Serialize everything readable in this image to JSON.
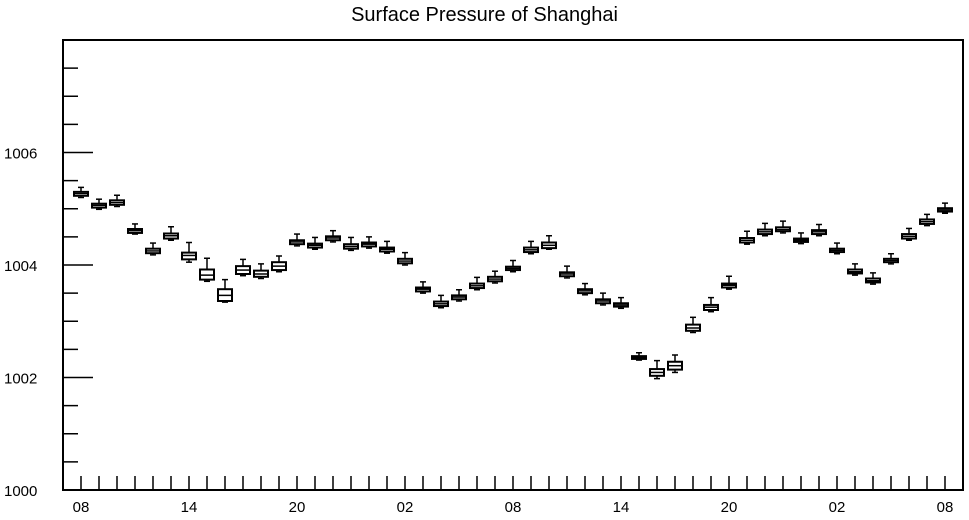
{
  "chart_data": {
    "type": "box",
    "title": "Surface Pressure of Shanghai",
    "xlabel": "",
    "ylabel": "",
    "ylim": [
      1000,
      1008
    ],
    "y_ticks": [
      "1000",
      "1002",
      "1004",
      "1006"
    ],
    "x_ticks": [
      {
        "index": 0,
        "label": "08"
      },
      {
        "index": 6,
        "label": "14"
      },
      {
        "index": 12,
        "label": "20"
      },
      {
        "index": 18,
        "label": "02"
      },
      {
        "index": 24,
        "label": "08"
      },
      {
        "index": 30,
        "label": "14"
      },
      {
        "index": 36,
        "label": "20"
      },
      {
        "index": 42,
        "label": "02"
      },
      {
        "index": 48,
        "label": "08"
      }
    ],
    "grid": false,
    "series": [
      {
        "values": [
          {
            "x": 0,
            "median": 1005.27,
            "q1": 1005.23,
            "q3": 1005.3,
            "min": 1005.2,
            "max": 1005.38
          },
          {
            "x": 1,
            "median": 1005.06,
            "q1": 1005.02,
            "q3": 1005.09,
            "min": 1004.99,
            "max": 1005.17
          },
          {
            "x": 2,
            "median": 1005.11,
            "q1": 1005.07,
            "q3": 1005.15,
            "min": 1005.04,
            "max": 1005.24
          },
          {
            "x": 3,
            "median": 1004.61,
            "q1": 1004.57,
            "q3": 1004.64,
            "min": 1004.55,
            "max": 1004.73
          },
          {
            "x": 4,
            "median": 1004.25,
            "q1": 1004.21,
            "q3": 1004.29,
            "min": 1004.18,
            "max": 1004.39
          },
          {
            "x": 5,
            "median": 1004.52,
            "q1": 1004.47,
            "q3": 1004.56,
            "min": 1004.44,
            "max": 1004.68
          },
          {
            "x": 6,
            "median": 1004.17,
            "q1": 1004.1,
            "q3": 1004.22,
            "min": 1004.05,
            "max": 1004.4
          },
          {
            "x": 7,
            "median": 1003.82,
            "q1": 1003.74,
            "q3": 1003.92,
            "min": 1003.71,
            "max": 1004.12
          },
          {
            "x": 8,
            "median": 1003.46,
            "q1": 1003.36,
            "q3": 1003.57,
            "min": 1003.34,
            "max": 1003.74
          },
          {
            "x": 9,
            "median": 1003.91,
            "q1": 1003.84,
            "q3": 1003.98,
            "min": 1003.81,
            "max": 1004.1
          },
          {
            "x": 10,
            "median": 1003.84,
            "q1": 1003.79,
            "q3": 1003.9,
            "min": 1003.76,
            "max": 1004.02
          },
          {
            "x": 11,
            "median": 1003.98,
            "q1": 1003.91,
            "q3": 1004.05,
            "min": 1003.88,
            "max": 1004.16
          },
          {
            "x": 12,
            "median": 1004.41,
            "q1": 1004.37,
            "q3": 1004.44,
            "min": 1004.34,
            "max": 1004.55
          },
          {
            "x": 13,
            "median": 1004.35,
            "q1": 1004.31,
            "q3": 1004.38,
            "min": 1004.28,
            "max": 1004.49
          },
          {
            "x": 14,
            "median": 1004.48,
            "q1": 1004.44,
            "q3": 1004.51,
            "min": 1004.41,
            "max": 1004.61
          },
          {
            "x": 15,
            "median": 1004.33,
            "q1": 1004.29,
            "q3": 1004.37,
            "min": 1004.26,
            "max": 1004.49
          },
          {
            "x": 16,
            "median": 1004.37,
            "q1": 1004.33,
            "q3": 1004.4,
            "min": 1004.3,
            "max": 1004.5
          },
          {
            "x": 17,
            "median": 1004.28,
            "q1": 1004.24,
            "q3": 1004.31,
            "min": 1004.21,
            "max": 1004.42
          },
          {
            "x": 18,
            "median": 1004.07,
            "q1": 1004.03,
            "q3": 1004.11,
            "min": 1004.0,
            "max": 1004.22
          },
          {
            "x": 19,
            "median": 1003.57,
            "q1": 1003.53,
            "q3": 1003.6,
            "min": 1003.5,
            "max": 1003.7
          },
          {
            "x": 20,
            "median": 1003.31,
            "q1": 1003.27,
            "q3": 1003.35,
            "min": 1003.24,
            "max": 1003.46
          },
          {
            "x": 21,
            "median": 1003.43,
            "q1": 1003.39,
            "q3": 1003.46,
            "min": 1003.36,
            "max": 1003.56
          },
          {
            "x": 22,
            "median": 1003.63,
            "q1": 1003.59,
            "q3": 1003.67,
            "min": 1003.56,
            "max": 1003.78
          },
          {
            "x": 23,
            "median": 1003.75,
            "q1": 1003.71,
            "q3": 1003.79,
            "min": 1003.68,
            "max": 1003.89
          },
          {
            "x": 24,
            "median": 1003.94,
            "q1": 1003.91,
            "q3": 1003.97,
            "min": 1003.88,
            "max": 1004.08
          },
          {
            "x": 25,
            "median": 1004.27,
            "q1": 1004.23,
            "q3": 1004.31,
            "min": 1004.2,
            "max": 1004.42
          },
          {
            "x": 26,
            "median": 1004.35,
            "q1": 1004.3,
            "q3": 1004.4,
            "min": 1004.28,
            "max": 1004.52
          },
          {
            "x": 27,
            "median": 1003.84,
            "q1": 1003.8,
            "q3": 1003.87,
            "min": 1003.77,
            "max": 1003.98
          },
          {
            "x": 28,
            "median": 1003.54,
            "q1": 1003.5,
            "q3": 1003.57,
            "min": 1003.47,
            "max": 1003.67
          },
          {
            "x": 29,
            "median": 1003.36,
            "q1": 1003.32,
            "q3": 1003.39,
            "min": 1003.29,
            "max": 1003.5
          },
          {
            "x": 30,
            "median": 1003.29,
            "q1": 1003.26,
            "q3": 1003.32,
            "min": 1003.23,
            "max": 1003.42
          },
          {
            "x": 31,
            "median": 1002.36,
            "q1": 1002.33,
            "q3": 1002.38,
            "min": 1002.31,
            "max": 1002.44
          },
          {
            "x": 32,
            "median": 1002.09,
            "q1": 1002.03,
            "q3": 1002.15,
            "min": 1001.98,
            "max": 1002.3
          },
          {
            "x": 33,
            "median": 1002.21,
            "q1": 1002.14,
            "q3": 1002.28,
            "min": 1002.09,
            "max": 1002.4
          },
          {
            "x": 34,
            "median": 1002.88,
            "q1": 1002.83,
            "q3": 1002.94,
            "min": 1002.8,
            "max": 1003.07
          },
          {
            "x": 35,
            "median": 1003.25,
            "q1": 1003.2,
            "q3": 1003.29,
            "min": 1003.17,
            "max": 1003.42
          },
          {
            "x": 36,
            "median": 1003.64,
            "q1": 1003.6,
            "q3": 1003.67,
            "min": 1003.57,
            "max": 1003.8
          },
          {
            "x": 37,
            "median": 1004.44,
            "q1": 1004.4,
            "q3": 1004.48,
            "min": 1004.37,
            "max": 1004.6
          },
          {
            "x": 38,
            "median": 1004.59,
            "q1": 1004.55,
            "q3": 1004.63,
            "min": 1004.52,
            "max": 1004.74
          },
          {
            "x": 39,
            "median": 1004.63,
            "q1": 1004.6,
            "q3": 1004.67,
            "min": 1004.57,
            "max": 1004.78
          },
          {
            "x": 40,
            "median": 1004.44,
            "q1": 1004.41,
            "q3": 1004.47,
            "min": 1004.38,
            "max": 1004.57
          },
          {
            "x": 41,
            "median": 1004.59,
            "q1": 1004.55,
            "q3": 1004.62,
            "min": 1004.52,
            "max": 1004.72
          },
          {
            "x": 42,
            "median": 1004.26,
            "q1": 1004.23,
            "q3": 1004.29,
            "min": 1004.2,
            "max": 1004.39
          },
          {
            "x": 43,
            "median": 1003.88,
            "q1": 1003.85,
            "q3": 1003.92,
            "min": 1003.82,
            "max": 1004.02
          },
          {
            "x": 44,
            "median": 1003.72,
            "q1": 1003.69,
            "q3": 1003.76,
            "min": 1003.66,
            "max": 1003.86
          },
          {
            "x": 45,
            "median": 1004.08,
            "q1": 1004.05,
            "q3": 1004.11,
            "min": 1004.02,
            "max": 1004.2
          },
          {
            "x": 46,
            "median": 1004.51,
            "q1": 1004.47,
            "q3": 1004.55,
            "min": 1004.44,
            "max": 1004.65
          },
          {
            "x": 47,
            "median": 1004.77,
            "q1": 1004.73,
            "q3": 1004.81,
            "min": 1004.7,
            "max": 1004.9
          },
          {
            "x": 48,
            "median": 1004.98,
            "q1": 1004.95,
            "q3": 1005.01,
            "min": 1004.92,
            "max": 1005.1
          }
        ]
      }
    ],
    "colors": {
      "box_stroke": "#000000",
      "axis": "#000000",
      "background": "#ffffff"
    }
  }
}
